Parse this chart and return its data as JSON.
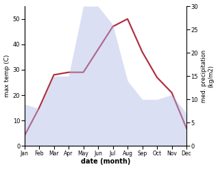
{
  "months": [
    "Jan",
    "Feb",
    "Mar",
    "Apr",
    "May",
    "Jun",
    "Jul",
    "Aug",
    "Sep",
    "Oct",
    "Nov",
    "Dec"
  ],
  "precipitation": [
    9,
    8,
    15,
    15,
    30,
    30,
    26,
    14,
    10,
    10,
    11,
    7
  ],
  "temperature": [
    4,
    15,
    28,
    29,
    29,
    38,
    47,
    50,
    37,
    27,
    21,
    7
  ],
  "precip_color": "#adb8e8",
  "temp_color": "#b03040",
  "temp_ylim": [
    0,
    55
  ],
  "temp_yticks": [
    0,
    10,
    20,
    30,
    40,
    50
  ],
  "precip_ylim": [
    0,
    30
  ],
  "precip_yticks": [
    0,
    5,
    10,
    15,
    20,
    25,
    30
  ],
  "xlabel": "date (month)",
  "ylabel_left": "max temp (C)",
  "ylabel_right": "med. precipitation\n(kg/m2)",
  "fill_alpha": 0.45
}
